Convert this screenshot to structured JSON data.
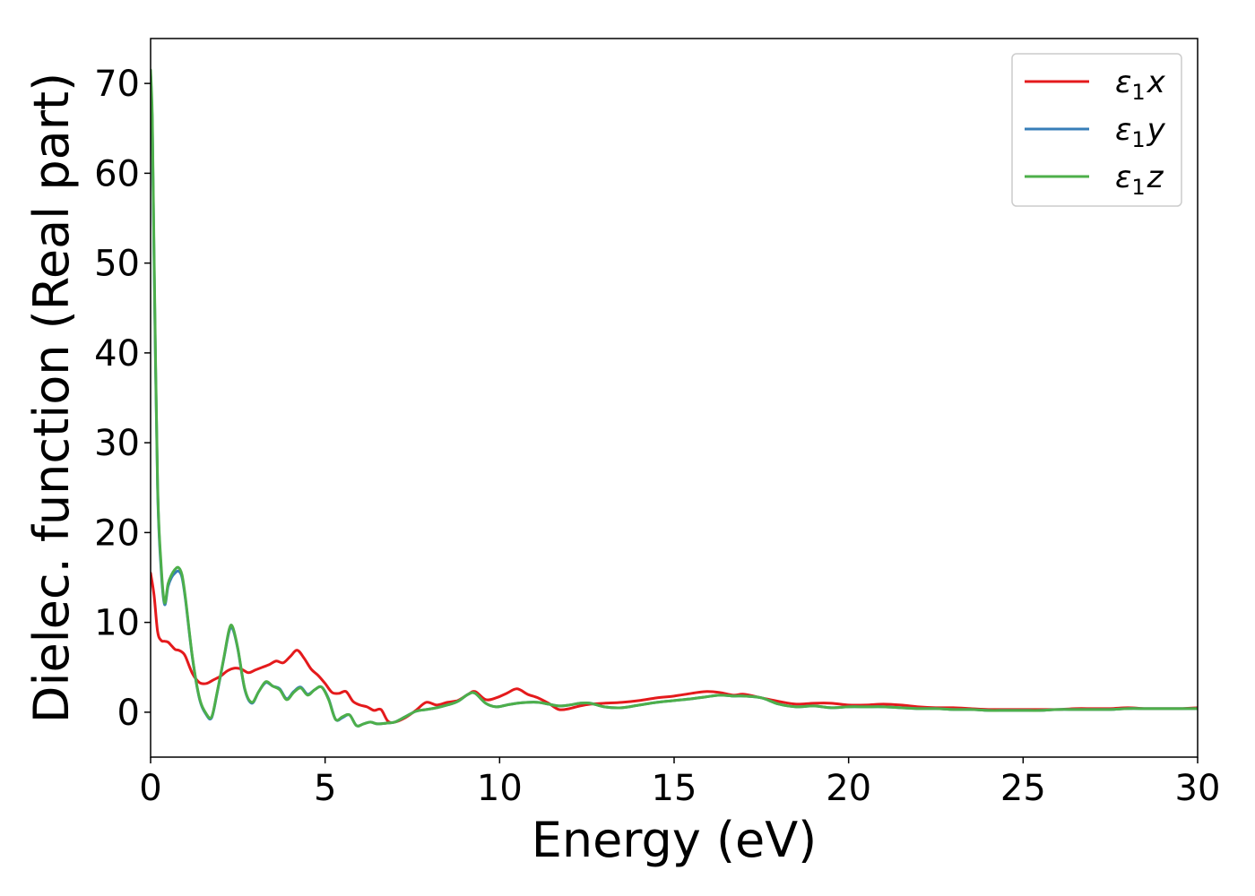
{
  "chart_data": {
    "type": "line",
    "title": "",
    "xlabel": "Energy (eV)",
    "ylabel": "Dielec. function (Real part)",
    "xlim": [
      0,
      30
    ],
    "ylim": [
      -5,
      75
    ],
    "xticks": [
      0,
      5,
      10,
      15,
      20,
      25,
      30
    ],
    "yticks": [
      0,
      10,
      20,
      30,
      40,
      50,
      60,
      70
    ],
    "grid": false,
    "legend_position": "top-right",
    "series": [
      {
        "name": "ε1x",
        "legend": {
          "base": "ε",
          "sub": "1",
          "tail": "x"
        },
        "color": "#e41a1c",
        "x": [
          0,
          0.1,
          0.2,
          0.3,
          0.4,
          0.5,
          0.6,
          0.7,
          0.8,
          0.9,
          1.0,
          1.2,
          1.4,
          1.6,
          1.8,
          2.0,
          2.2,
          2.4,
          2.6,
          2.8,
          3.0,
          3.2,
          3.4,
          3.6,
          3.8,
          4.0,
          4.2,
          4.4,
          4.6,
          4.8,
          5.0,
          5.2,
          5.4,
          5.6,
          5.8,
          6.0,
          6.2,
          6.4,
          6.6,
          6.8,
          7.0,
          7.3,
          7.6,
          7.9,
          8.2,
          8.5,
          8.8,
          9.1,
          9.3,
          9.6,
          9.9,
          10.2,
          10.5,
          10.8,
          11.1,
          11.4,
          11.7,
          12.0,
          12.3,
          12.6,
          13.0,
          13.5,
          14.0,
          14.5,
          15.0,
          15.5,
          15.9,
          16.3,
          16.7,
          17.0,
          17.5,
          18.0,
          18.5,
          19.0,
          19.5,
          20.0,
          20.5,
          21.0,
          21.5,
          22.0,
          22.5,
          23.0,
          23.5,
          24.0,
          24.5,
          25.0,
          25.5,
          26.0,
          26.5,
          27.0,
          27.5,
          28.0,
          28.5,
          29.0,
          29.5,
          30.0
        ],
        "y": [
          15.5,
          13.0,
          9.0,
          8.0,
          7.9,
          7.8,
          7.4,
          7.0,
          6.9,
          6.7,
          6.2,
          4.3,
          3.3,
          3.2,
          3.6,
          4.0,
          4.6,
          4.9,
          4.8,
          4.4,
          4.7,
          5.0,
          5.3,
          5.7,
          5.5,
          6.2,
          6.9,
          6.0,
          4.8,
          4.1,
          3.2,
          2.2,
          2.1,
          2.3,
          1.2,
          0.8,
          0.6,
          0.2,
          0.3,
          -1.0,
          -1.1,
          -0.6,
          0.2,
          1.1,
          0.8,
          1.1,
          1.3,
          2.0,
          2.3,
          1.4,
          1.6,
          2.1,
          2.6,
          2.0,
          1.6,
          1.0,
          0.3,
          0.4,
          0.7,
          0.9,
          1.0,
          1.1,
          1.3,
          1.6,
          1.8,
          2.1,
          2.3,
          2.2,
          1.9,
          2.0,
          1.6,
          1.2,
          0.9,
          1.0,
          1.0,
          0.8,
          0.8,
          0.9,
          0.8,
          0.6,
          0.5,
          0.5,
          0.4,
          0.3,
          0.3,
          0.3,
          0.3,
          0.3,
          0.4,
          0.4,
          0.4,
          0.5,
          0.4,
          0.4,
          0.4,
          0.5
        ]
      },
      {
        "name": "ε1y",
        "legend": {
          "base": "ε",
          "sub": "1",
          "tail": "y"
        },
        "color": "#377eb8",
        "x": [
          0,
          0.05,
          0.1,
          0.2,
          0.3,
          0.4,
          0.5,
          0.6,
          0.7,
          0.8,
          0.9,
          1.0,
          1.2,
          1.4,
          1.6,
          1.75,
          1.9,
          2.1,
          2.25,
          2.35,
          2.5,
          2.7,
          2.9,
          3.1,
          3.3,
          3.5,
          3.7,
          3.9,
          4.1,
          4.3,
          4.5,
          4.7,
          4.9,
          5.1,
          5.3,
          5.5,
          5.7,
          5.9,
          6.1,
          6.3,
          6.5,
          6.8,
          7.0,
          7.3,
          7.6,
          7.9,
          8.2,
          8.5,
          8.8,
          9.1,
          9.3,
          9.6,
          9.9,
          10.2,
          10.5,
          10.8,
          11.1,
          11.4,
          11.7,
          12.0,
          12.3,
          12.6,
          13.0,
          13.5,
          14.0,
          14.5,
          15.0,
          15.5,
          15.9,
          16.3,
          16.7,
          17.0,
          17.5,
          18.0,
          18.5,
          19.0,
          19.5,
          20.0,
          20.5,
          21.0,
          21.5,
          22.0,
          22.5,
          23.0,
          23.5,
          24.0,
          24.5,
          25.0,
          25.5,
          26.0,
          26.5,
          27.0,
          27.5,
          28.0,
          28.5,
          29.0,
          29.5,
          30.0
        ],
        "y": [
          71.0,
          65.0,
          50.0,
          25.0,
          16.0,
          12.0,
          14.0,
          15.0,
          15.5,
          15.7,
          15.0,
          12.5,
          6.0,
          1.5,
          -0.3,
          -0.6,
          2.0,
          6.0,
          9.0,
          9.3,
          7.0,
          2.5,
          1.0,
          2.3,
          3.3,
          2.9,
          2.6,
          1.5,
          2.3,
          2.8,
          2.0,
          2.5,
          2.8,
          1.5,
          -0.8,
          -0.6,
          -0.3,
          -1.5,
          -1.3,
          -1.1,
          -1.3,
          -1.2,
          -1.1,
          -0.5,
          0.1,
          0.3,
          0.5,
          0.8,
          1.2,
          2.0,
          2.1,
          1.0,
          0.6,
          0.8,
          1.0,
          1.1,
          1.1,
          0.9,
          0.7,
          0.8,
          1.0,
          1.0,
          0.6,
          0.5,
          0.8,
          1.1,
          1.3,
          1.5,
          1.7,
          1.9,
          1.8,
          1.8,
          1.6,
          0.9,
          0.6,
          0.7,
          0.5,
          0.6,
          0.6,
          0.6,
          0.5,
          0.4,
          0.4,
          0.3,
          0.3,
          0.2,
          0.2,
          0.2,
          0.2,
          0.3,
          0.3,
          0.3,
          0.3,
          0.4,
          0.4,
          0.4,
          0.4,
          0.4
        ]
      },
      {
        "name": "ε1z",
        "legend": {
          "base": "ε",
          "sub": "1",
          "tail": "z"
        },
        "color": "#4daf4a",
        "x": [
          0,
          0.05,
          0.1,
          0.2,
          0.3,
          0.4,
          0.5,
          0.6,
          0.7,
          0.8,
          0.9,
          1.0,
          1.2,
          1.4,
          1.6,
          1.75,
          1.9,
          2.1,
          2.25,
          2.35,
          2.5,
          2.7,
          2.9,
          3.1,
          3.3,
          3.5,
          3.7,
          3.9,
          4.1,
          4.3,
          4.5,
          4.7,
          4.9,
          5.1,
          5.3,
          5.5,
          5.7,
          5.9,
          6.1,
          6.3,
          6.5,
          6.8,
          7.0,
          7.3,
          7.6,
          7.9,
          8.2,
          8.5,
          8.8,
          9.1,
          9.3,
          9.6,
          9.9,
          10.2,
          10.5,
          10.8,
          11.1,
          11.4,
          11.7,
          12.0,
          12.3,
          12.6,
          13.0,
          13.5,
          14.0,
          14.5,
          15.0,
          15.5,
          15.9,
          16.3,
          16.7,
          17.0,
          17.5,
          18.0,
          18.5,
          19.0,
          19.5,
          20.0,
          20.5,
          21.0,
          21.5,
          22.0,
          22.5,
          23.0,
          23.5,
          24.0,
          24.5,
          25.0,
          25.5,
          26.0,
          26.5,
          27.0,
          27.5,
          28.0,
          28.5,
          29.0,
          29.5,
          30.0
        ],
        "y": [
          71.5,
          66.0,
          51.0,
          25.5,
          16.5,
          12.2,
          14.3,
          15.3,
          15.9,
          16.1,
          15.3,
          12.7,
          6.1,
          1.6,
          -0.2,
          -0.5,
          2.1,
          6.1,
          9.2,
          9.5,
          7.1,
          2.6,
          1.1,
          2.3,
          3.4,
          2.9,
          2.5,
          1.4,
          2.2,
          2.7,
          1.9,
          2.5,
          2.8,
          1.4,
          -0.8,
          -0.5,
          -0.3,
          -1.5,
          -1.3,
          -1.1,
          -1.3,
          -1.2,
          -1.1,
          -0.5,
          0.1,
          0.3,
          0.5,
          0.8,
          1.2,
          2.0,
          2.1,
          1.0,
          0.6,
          0.8,
          1.0,
          1.1,
          1.1,
          0.9,
          0.7,
          0.8,
          1.0,
          1.0,
          0.6,
          0.5,
          0.8,
          1.1,
          1.3,
          1.5,
          1.7,
          1.9,
          1.8,
          1.8,
          1.6,
          0.9,
          0.6,
          0.7,
          0.5,
          0.6,
          0.6,
          0.6,
          0.5,
          0.4,
          0.4,
          0.3,
          0.3,
          0.2,
          0.2,
          0.2,
          0.2,
          0.3,
          0.3,
          0.3,
          0.3,
          0.4,
          0.4,
          0.4,
          0.4,
          0.4
        ]
      }
    ]
  }
}
